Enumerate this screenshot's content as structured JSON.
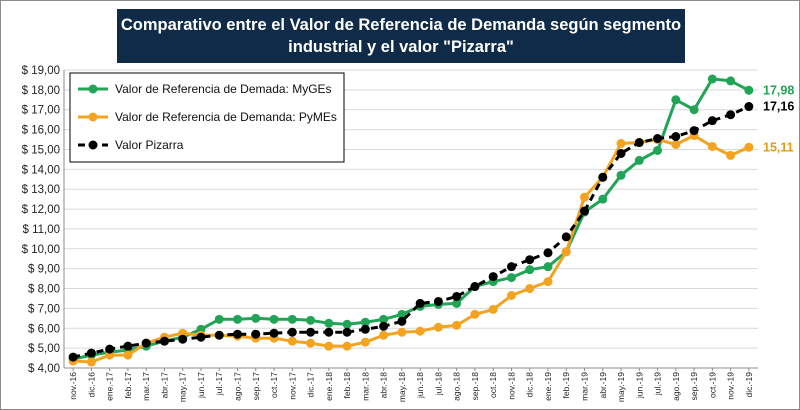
{
  "chart_data": {
    "type": "line",
    "title_line1": "Comparativo entre el Valor de Referencia de Demanda según segmento",
    "title_line2": "industrial y el valor \"Pizarra\"",
    "ylim": [
      4.0,
      19.0
    ],
    "y_ticks": [
      "$ 4,00",
      "$ 5,00",
      "$ 6,00",
      "$ 7,00",
      "$ 8,00",
      "$ 9,00",
      "$ 10,00",
      "$ 11,00",
      "$ 12,00",
      "$ 13,00",
      "$ 14,00",
      "$ 15,00",
      "$ 16,00",
      "$ 17,00",
      "$ 18,00",
      "$ 19,00"
    ],
    "grid": true,
    "legend_position": "top-left",
    "categories": [
      "nov.-16",
      "dic.-16",
      "ene.-17",
      "feb.-17",
      "mar.-17",
      "abr.-17",
      "may.-17",
      "jun.-17",
      "jul.-17",
      "ago.-17",
      "sep.-17",
      "oct.-17",
      "nov.-17",
      "dic.-17",
      "ene.-18",
      "feb.-18",
      "mar.-18",
      "abr.-18",
      "may.-18",
      "jun.-18",
      "jul.-18",
      "ago.-18",
      "sep.-18",
      "oct.-18",
      "nov.-18",
      "dic.-18",
      "ene.-19",
      "feb.-19",
      "mar.-19",
      "abr.-19",
      "may.-19",
      "jun.-19",
      "jul.-19",
      "ago.-19",
      "sep.-19",
      "oct.-19",
      "nov.-19",
      "dic.-19"
    ],
    "series": [
      {
        "name": "Valor de Referencia de Demada: MyGEs",
        "color": "#21a455",
        "dash": false,
        "values": [
          4.45,
          4.65,
          4.8,
          4.9,
          5.1,
          5.35,
          5.55,
          5.95,
          6.45,
          6.45,
          6.5,
          6.45,
          6.45,
          6.4,
          6.25,
          6.2,
          6.3,
          6.45,
          6.7,
          7.1,
          7.2,
          7.25,
          8.1,
          8.35,
          8.55,
          8.95,
          9.1,
          9.85,
          11.85,
          12.5,
          13.7,
          14.45,
          14.95,
          17.5,
          17.0,
          18.55,
          18.45,
          17.98
        ],
        "end_label": "17,98"
      },
      {
        "name": "Valor de Referencia de Demanda: PyMEs",
        "color": "#f3a320",
        "dash": false,
        "values": [
          4.35,
          4.3,
          4.65,
          4.65,
          5.25,
          5.55,
          5.75,
          5.65,
          5.65,
          5.6,
          5.5,
          5.5,
          5.35,
          5.25,
          5.1,
          5.1,
          5.3,
          5.65,
          5.8,
          5.85,
          6.05,
          6.15,
          6.7,
          6.95,
          7.65,
          8.0,
          8.35,
          9.85,
          12.6,
          13.6,
          15.3,
          15.35,
          15.5,
          15.25,
          15.7,
          15.15,
          14.7,
          15.11
        ],
        "end_label": "15,11"
      },
      {
        "name": "Valor Pizarra",
        "color": "#000000",
        "dash": true,
        "values": [
          4.55,
          4.75,
          4.95,
          5.1,
          5.25,
          5.35,
          5.45,
          5.55,
          5.65,
          5.7,
          5.7,
          5.75,
          5.8,
          5.8,
          5.8,
          5.8,
          5.95,
          6.1,
          6.35,
          7.25,
          7.35,
          7.6,
          8.1,
          8.6,
          9.1,
          9.45,
          9.8,
          10.6,
          11.9,
          13.6,
          14.8,
          15.35,
          15.55,
          15.65,
          15.95,
          16.45,
          16.75,
          17.16
        ],
        "end_label": "17,16"
      }
    ]
  }
}
